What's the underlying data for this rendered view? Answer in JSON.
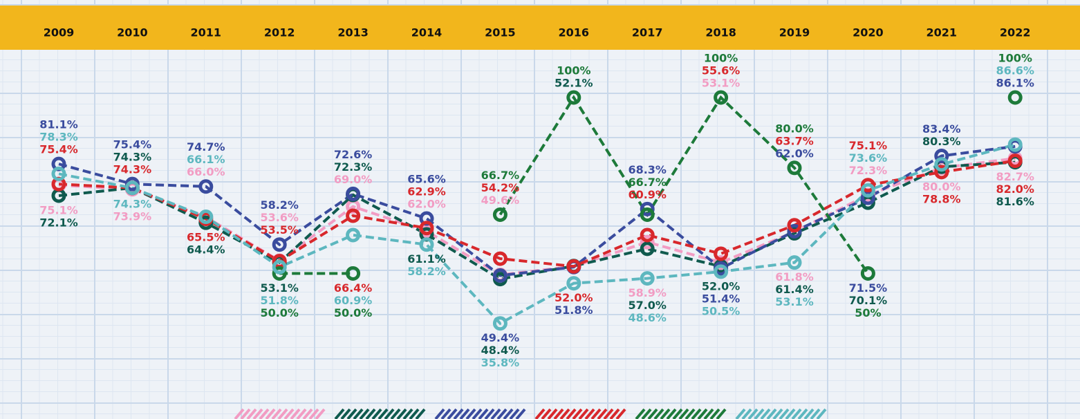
{
  "chart_data": {
    "type": "line",
    "categories": [
      "2009",
      "2010",
      "2011",
      "2012",
      "2013",
      "2014",
      "2015",
      "2016",
      "2017",
      "2018",
      "2019",
      "2020",
      "2021",
      "2022"
    ],
    "ylim": [
      10,
      100
    ],
    "header_color": "#f2b61c",
    "series": [
      {
        "color": "#f29cc3",
        "values": [
          75.1,
          73.9,
          66.0,
          53.6,
          69.0,
          62.0,
          49.6,
          52.0,
          58.9,
          53.1,
          61.8,
          72.3,
          80.0,
          82.7
        ],
        "value_labels": [
          "75.1%",
          "73.9%",
          "66.0%",
          "53.6%",
          "69.0%",
          "62.0%",
          "49.6%",
          null,
          "58.9%",
          "53.1%",
          "61.8%",
          "72.3%",
          "80.0%",
          "82.7%"
        ]
      },
      {
        "color": "#0f5a4e",
        "values": [
          72.1,
          74.3,
          64.4,
          53.1,
          72.3,
          61.1,
          48.4,
          52.1,
          57.0,
          52.0,
          61.4,
          70.1,
          80.3,
          81.6
        ],
        "value_labels": [
          "72.1%",
          "74.3%",
          "64.4%",
          "53.1%",
          "72.3%",
          "61.1%",
          "48.4%",
          "52.1%",
          "57.0%",
          "52.0%",
          "61.4%",
          "70.1%",
          "80.3%",
          "81.6%"
        ]
      },
      {
        "color": "#3a4c9e",
        "values": [
          81.1,
          75.4,
          74.7,
          58.2,
          72.6,
          65.6,
          49.4,
          51.8,
          68.3,
          51.4,
          62.0,
          71.5,
          83.4,
          86.1
        ],
        "value_labels": [
          "81.1%",
          "75.4%",
          "74.7%",
          "58.2%",
          "72.6%",
          "65.6%",
          "49.4%",
          "51.8%",
          "68.3%",
          "51.4%",
          "62.0%",
          "71.5%",
          "83.4%",
          "86.1%"
        ]
      },
      {
        "color": "#d8282c",
        "values": [
          75.4,
          74.3,
          65.5,
          53.5,
          66.4,
          62.9,
          54.2,
          52.0,
          60.9,
          55.6,
          63.7,
          75.1,
          78.8,
          82.0
        ],
        "value_labels": [
          "75.4%",
          "74.3%",
          "65.5%",
          "53.5%",
          "66.4%",
          "62.9%",
          "54.2%",
          "52.0%",
          "60.9%",
          "55.6%",
          "63.7%",
          "75.1%",
          "78.8%",
          "82.0%"
        ]
      },
      {
        "color": "#1d7a3a",
        "values": [
          null,
          null,
          null,
          50.0,
          50.0,
          null,
          66.7,
          100,
          66.7,
          100,
          80.0,
          50,
          null,
          100
        ],
        "value_labels": [
          null,
          null,
          null,
          "50.0%",
          "50.0%",
          null,
          "66.7%",
          "100%",
          "66.7%",
          "100%",
          "80.0%",
          "50%",
          null,
          "100%"
        ]
      },
      {
        "color": "#5db7bf",
        "values": [
          78.3,
          74.3,
          66.1,
          51.8,
          60.9,
          58.2,
          35.8,
          47.2,
          48.6,
          50.5,
          53.1,
          73.6,
          81.0,
          86.6
        ],
        "value_labels": [
          "78.3%",
          "74.3%",
          "66.1%",
          "51.8%",
          "60.9%",
          "58.2%",
          "35.8%",
          null,
          "48.6%",
          "50.5%",
          "53.1%",
          "73.6%",
          null,
          "86.6%"
        ]
      }
    ]
  }
}
